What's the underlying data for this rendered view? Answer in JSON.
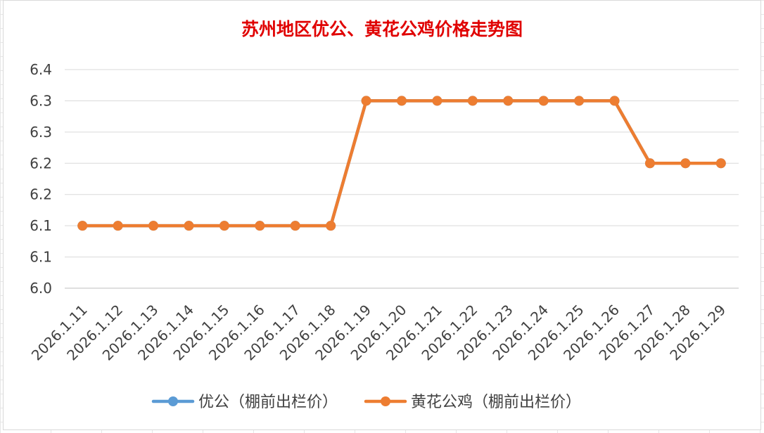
{
  "chart_data": {
    "type": "line",
    "title": "苏州地区优公、黄花公鸡价格走势图",
    "xlabel": "",
    "ylabel": "",
    "categories": [
      "2026.1.11",
      "2026.1.12",
      "2026.1.13",
      "2026.1.14",
      "2026.1.15",
      "2026.1.16",
      "2026.1.17",
      "2026.1.18",
      "2026.1.19",
      "2026.1.20",
      "2026.1.21",
      "2026.1.22",
      "2026.1.23",
      "2026.1.24",
      "2026.1.25",
      "2026.1.26",
      "2026.1.27",
      "2026.1.28",
      "2026.1.29"
    ],
    "ylim": [
      6.0,
      6.35
    ],
    "yticks": [
      6.0,
      6.05,
      6.1,
      6.15,
      6.2,
      6.25,
      6.3,
      6.35
    ],
    "ytick_labels": [
      "6.0",
      "6.1",
      "6.1",
      "6.2",
      "6.2",
      "6.3",
      "6.3",
      "6.4"
    ],
    "grid": true,
    "legend_position": "bottom",
    "series": [
      {
        "name": "优公（棚前出栏价）",
        "color": "#5b9bd5",
        "values": [
          6.1,
          6.1,
          6.1,
          6.1,
          6.1,
          6.1,
          6.1,
          6.1,
          6.3,
          6.3,
          6.3,
          6.3,
          6.3,
          6.3,
          6.3,
          6.3,
          6.2,
          6.2,
          6.2
        ]
      },
      {
        "name": "黄花公鸡（棚前出栏价）",
        "color": "#ed7d31",
        "values": [
          6.1,
          6.1,
          6.1,
          6.1,
          6.1,
          6.1,
          6.1,
          6.1,
          6.3,
          6.3,
          6.3,
          6.3,
          6.3,
          6.3,
          6.3,
          6.3,
          6.2,
          6.2,
          6.2
        ]
      }
    ]
  }
}
